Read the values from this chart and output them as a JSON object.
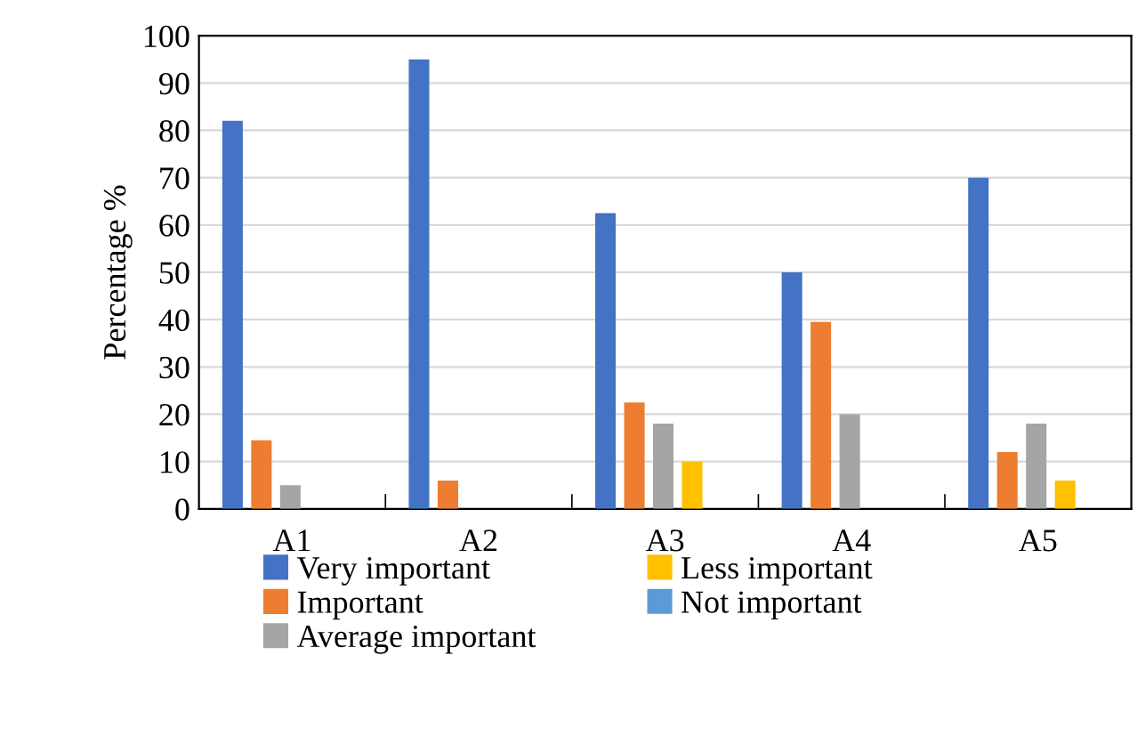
{
  "chart_data": {
    "type": "bar",
    "ylabel": "Percentage %",
    "categories": [
      "A1",
      "A2",
      "A3",
      "A4",
      "A5"
    ],
    "ylim": [
      0,
      100
    ],
    "yticks": [
      0,
      10,
      20,
      30,
      40,
      50,
      60,
      70,
      80,
      90,
      100
    ],
    "grid": "y",
    "legend": "bottom",
    "series": [
      {
        "name": "Very important",
        "color": "#4472c4",
        "values": [
          82,
          95,
          62.5,
          50,
          70
        ]
      },
      {
        "name": "Important",
        "color": "#ed7d31",
        "values": [
          14.5,
          6,
          22.5,
          39.5,
          12
        ]
      },
      {
        "name": "Average important",
        "color": "#a5a5a5",
        "values": [
          5,
          0,
          18,
          20,
          18
        ]
      },
      {
        "name": "Less important",
        "color": "#ffc000",
        "values": [
          0,
          0,
          10,
          0,
          6
        ]
      },
      {
        "name": "Not important",
        "color": "#5b9bd5",
        "values": [
          0,
          0,
          0,
          0,
          0
        ]
      }
    ]
  }
}
